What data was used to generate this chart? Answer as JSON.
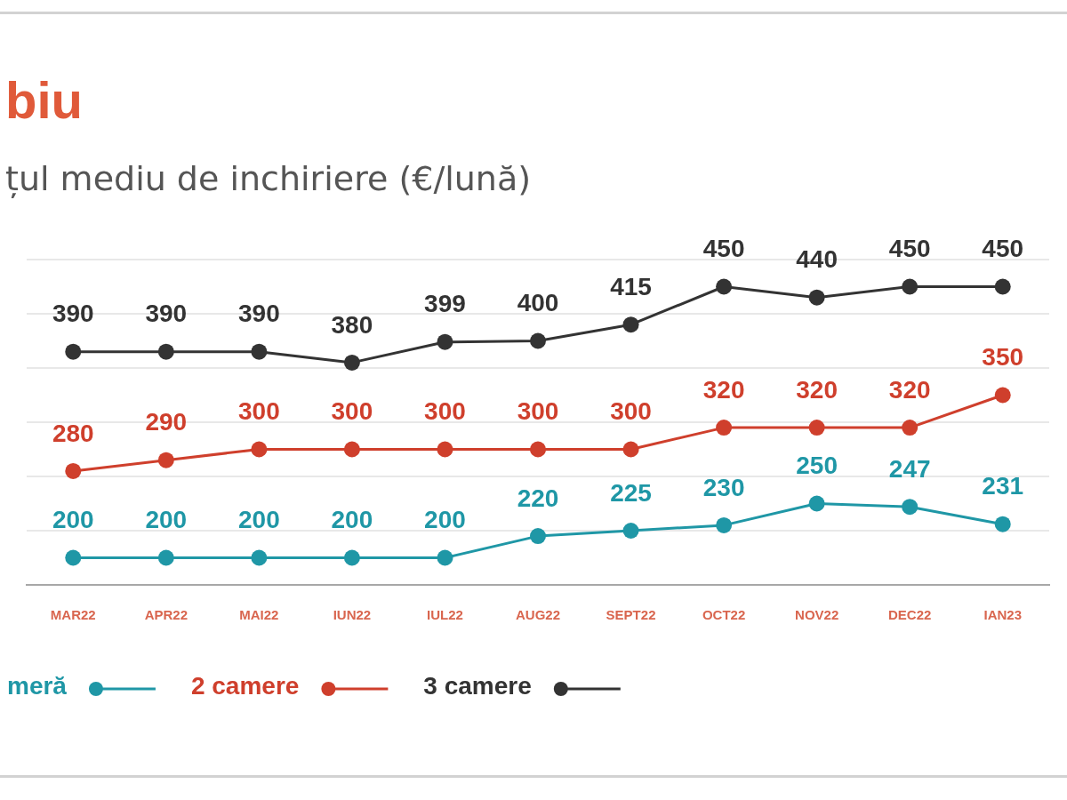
{
  "chart_data": {
    "type": "line",
    "title": "biu",
    "subtitle": "țul mediu de inchiriere (€/lună)",
    "categories": [
      "MAR22",
      "APR22",
      "MAI22",
      "IUN22",
      "IUL22",
      "AUG22",
      "SEPT22",
      "OCT22",
      "NOV22",
      "DEC22",
      "IAN23"
    ],
    "series": [
      {
        "name": "meră",
        "color": "#1f97a6",
        "values": [
          200,
          200,
          200,
          200,
          200,
          220,
          225,
          230,
          250,
          247,
          231
        ]
      },
      {
        "name": "2 camere",
        "color": "#cf3f2c",
        "values": [
          280,
          290,
          300,
          300,
          300,
          300,
          300,
          320,
          320,
          320,
          350
        ]
      },
      {
        "name": "3 camere",
        "color": "#333333",
        "values": [
          390,
          390,
          390,
          380,
          399,
          400,
          415,
          450,
          440,
          450,
          450
        ]
      }
    ],
    "ylim": [
      175,
      475
    ],
    "yticks": [
      {
        "value": 175,
        "label": null
      },
      {
        "value": 225,
        "label": null
      },
      {
        "value": 275,
        "label": null
      },
      {
        "value": 325,
        "label": null
      },
      {
        "value": 375,
        "label": null
      },
      {
        "value": 425,
        "label": null
      },
      {
        "value": 475,
        "label": null
      }
    ],
    "grid": "y",
    "legend": "bottom left",
    "tick_labels": "x",
    "marker": "circle",
    "data_labels": true
  }
}
